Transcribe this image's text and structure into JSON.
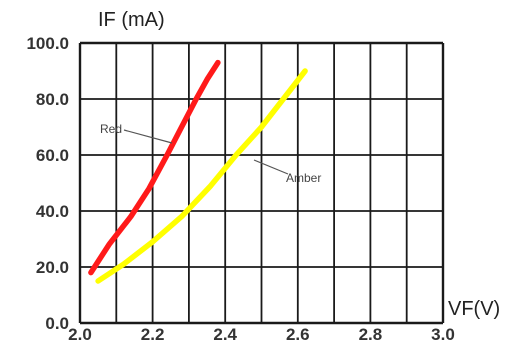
{
  "chart_data": {
    "type": "line",
    "ylabel": "IF (mA)",
    "xlabel": "VF(V)",
    "x_ticks": [
      "2.0",
      "2.2",
      "2.4",
      "2.6",
      "2.8",
      "3.0"
    ],
    "y_ticks": [
      "0.0",
      "20.0",
      "40.0",
      "60.0",
      "80.0",
      "100.0"
    ],
    "xlim": [
      2.0,
      3.0
    ],
    "ylim": [
      0,
      100
    ],
    "grid": true,
    "series": [
      {
        "name": "Red",
        "color": "#ff1a1a",
        "x": [
          2.03,
          2.08,
          2.14,
          2.19,
          2.24,
          2.28,
          2.32,
          2.35,
          2.38
        ],
        "y": [
          18,
          28,
          38,
          48,
          60,
          70,
          80,
          87,
          93
        ]
      },
      {
        "name": "Amber",
        "color": "#ffff00",
        "x": [
          2.05,
          2.12,
          2.2,
          2.28,
          2.36,
          2.43,
          2.5,
          2.56,
          2.62
        ],
        "y": [
          15,
          21,
          29,
          38,
          49,
          60,
          70,
          80,
          90
        ]
      }
    ],
    "annotations": [
      {
        "text": "Red",
        "series": "Red"
      },
      {
        "text": "Amber",
        "series": "Amber"
      }
    ]
  }
}
